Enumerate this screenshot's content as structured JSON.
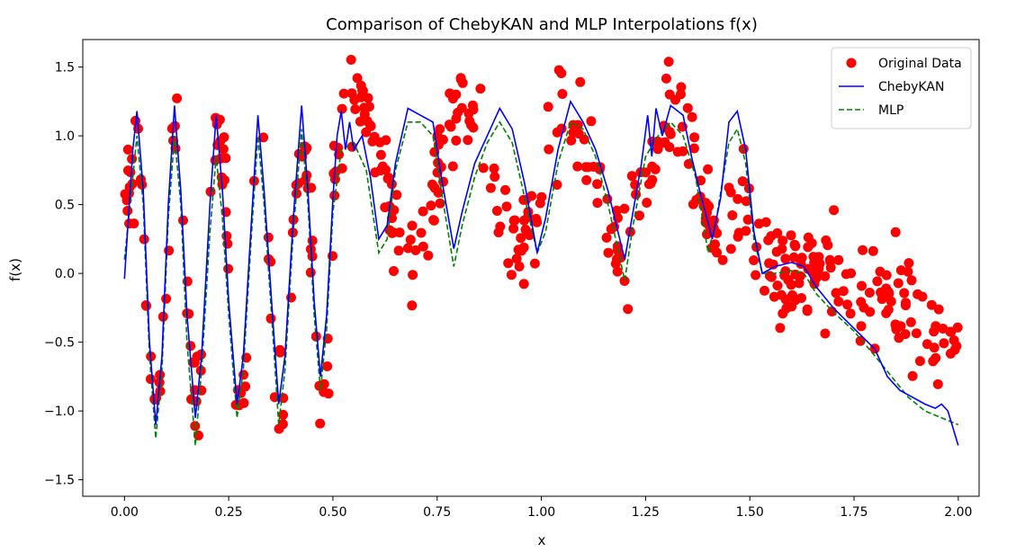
{
  "chart_data": {
    "type": "scatter+line",
    "title": "Comparison of ChebyKAN and MLP Interpolations f(x)",
    "xlabel": "x",
    "ylabel": "f(x)",
    "xlim": [
      -0.1,
      2.05
    ],
    "ylim": [
      -1.62,
      1.7
    ],
    "xticks": [
      0.0,
      0.25,
      0.5,
      0.75,
      1.0,
      1.25,
      1.5,
      1.75,
      2.0
    ],
    "xtick_labels": [
      "0.00",
      "0.25",
      "0.50",
      "0.75",
      "1.00",
      "1.25",
      "1.50",
      "1.75",
      "2.00"
    ],
    "yticks": [
      -1.5,
      -1.0,
      -0.5,
      0.0,
      0.5,
      1.0,
      1.5
    ],
    "ytick_labels": [
      "−1.5",
      "−1.0",
      "−0.5",
      "0.0",
      "0.5",
      "1.0",
      "1.5"
    ],
    "grid": false,
    "legend_position": "top-right",
    "series": [
      {
        "name": "Original Data",
        "kind": "scatter",
        "color": "#ff0000",
        "n_points": 500
      },
      {
        "name": "ChebyKAN",
        "kind": "line",
        "color": "#0000ff",
        "dash": "solid"
      },
      {
        "name": "MLP",
        "kind": "line",
        "color": "#008000",
        "dash": "dashed"
      }
    ],
    "function": "sin(20*pi*x) for x<0.5; sin(8*pi*x)*0.5+0.7 for 0.5<=x<1.5; -0.8*(x-1.5)-0.2*... decreasing for x>=1.5 (with noise)",
    "chebykan_points": [
      [
        0.0,
        -0.04
      ],
      [
        0.02,
        0.9
      ],
      [
        0.03,
        1.18
      ],
      [
        0.045,
        0.6
      ],
      [
        0.06,
        -0.5
      ],
      [
        0.075,
        -1.1
      ],
      [
        0.09,
        -0.6
      ],
      [
        0.105,
        0.5
      ],
      [
        0.12,
        1.22
      ],
      [
        0.135,
        0.6
      ],
      [
        0.15,
        -0.3
      ],
      [
        0.17,
        -1.05
      ],
      [
        0.185,
        -0.6
      ],
      [
        0.205,
        0.5
      ],
      [
        0.22,
        1.15
      ],
      [
        0.235,
        0.6
      ],
      [
        0.25,
        -0.2
      ],
      [
        0.27,
        -0.95
      ],
      [
        0.285,
        -0.6
      ],
      [
        0.305,
        0.4
      ],
      [
        0.32,
        1.15
      ],
      [
        0.335,
        0.6
      ],
      [
        0.355,
        -0.3
      ],
      [
        0.37,
        -0.95
      ],
      [
        0.385,
        -0.6
      ],
      [
        0.405,
        0.4
      ],
      [
        0.425,
        1.22
      ],
      [
        0.44,
        0.6
      ],
      [
        0.455,
        -0.2
      ],
      [
        0.47,
        -0.75
      ],
      [
        0.485,
        -0.3
      ],
      [
        0.5,
        0.55
      ],
      [
        0.51,
        1.0
      ],
      [
        0.52,
        1.18
      ],
      [
        0.53,
        0.9
      ],
      [
        0.54,
        1.1
      ],
      [
        0.55,
        0.9
      ],
      [
        0.57,
        1.0
      ],
      [
        0.59,
        0.7
      ],
      [
        0.61,
        0.25
      ],
      [
        0.63,
        0.35
      ],
      [
        0.65,
        0.8
      ],
      [
        0.68,
        1.2
      ],
      [
        0.71,
        1.15
      ],
      [
        0.74,
        1.1
      ],
      [
        0.76,
        0.7
      ],
      [
        0.79,
        0.18
      ],
      [
        0.81,
        0.45
      ],
      [
        0.84,
        0.8
      ],
      [
        0.87,
        1.0
      ],
      [
        0.9,
        1.2
      ],
      [
        0.93,
        1.05
      ],
      [
        0.96,
        0.65
      ],
      [
        0.99,
        0.15
      ],
      [
        1.01,
        0.4
      ],
      [
        1.04,
        0.9
      ],
      [
        1.07,
        1.25
      ],
      [
        1.1,
        1.1
      ],
      [
        1.13,
        0.9
      ],
      [
        1.16,
        0.6
      ],
      [
        1.2,
        0.1
      ],
      [
        1.22,
        0.45
      ],
      [
        1.24,
        0.8
      ],
      [
        1.255,
        1.15
      ],
      [
        1.265,
        0.85
      ],
      [
        1.275,
        1.2
      ],
      [
        1.29,
        1.0
      ],
      [
        1.31,
        1.22
      ],
      [
        1.34,
        1.15
      ],
      [
        1.36,
        0.85
      ],
      [
        1.38,
        0.6
      ],
      [
        1.41,
        0.25
      ],
      [
        1.43,
        0.55
      ],
      [
        1.45,
        1.1
      ],
      [
        1.47,
        1.18
      ],
      [
        1.49,
        0.9
      ],
      [
        1.51,
        0.3
      ],
      [
        1.53,
        0.0
      ],
      [
        1.56,
        0.05
      ],
      [
        1.6,
        0.08
      ],
      [
        1.63,
        0.05
      ],
      [
        1.66,
        -0.1
      ],
      [
        1.7,
        -0.25
      ],
      [
        1.75,
        -0.4
      ],
      [
        1.8,
        -0.55
      ],
      [
        1.83,
        -0.75
      ],
      [
        1.86,
        -0.85
      ],
      [
        1.89,
        -0.9
      ],
      [
        1.92,
        -0.95
      ],
      [
        1.945,
        -0.98
      ],
      [
        1.96,
        -0.95
      ],
      [
        1.975,
        -1.0
      ],
      [
        2.0,
        -1.25
      ]
    ],
    "mlp_points": [
      [
        0.0,
        0.1
      ],
      [
        0.02,
        0.7
      ],
      [
        0.03,
        1.0
      ],
      [
        0.045,
        0.5
      ],
      [
        0.06,
        -0.6
      ],
      [
        0.075,
        -1.2
      ],
      [
        0.09,
        -0.7
      ],
      [
        0.105,
        0.4
      ],
      [
        0.12,
        1.0
      ],
      [
        0.135,
        0.5
      ],
      [
        0.15,
        -0.5
      ],
      [
        0.17,
        -1.25
      ],
      [
        0.185,
        -0.7
      ],
      [
        0.205,
        0.3
      ],
      [
        0.22,
        0.85
      ],
      [
        0.235,
        0.4
      ],
      [
        0.25,
        -0.3
      ],
      [
        0.27,
        -1.05
      ],
      [
        0.285,
        -0.7
      ],
      [
        0.305,
        0.3
      ],
      [
        0.32,
        1.0
      ],
      [
        0.335,
        0.5
      ],
      [
        0.355,
        -0.4
      ],
      [
        0.37,
        -1.1
      ],
      [
        0.385,
        -0.7
      ],
      [
        0.405,
        0.3
      ],
      [
        0.425,
        1.05
      ],
      [
        0.44,
        0.5
      ],
      [
        0.455,
        -0.3
      ],
      [
        0.47,
        -0.85
      ],
      [
        0.485,
        -0.4
      ],
      [
        0.5,
        0.45
      ],
      [
        0.52,
        0.9
      ],
      [
        0.55,
        0.95
      ],
      [
        0.58,
        0.75
      ],
      [
        0.61,
        0.15
      ],
      [
        0.63,
        0.25
      ],
      [
        0.65,
        0.75
      ],
      [
        0.68,
        1.1
      ],
      [
        0.71,
        1.1
      ],
      [
        0.74,
        1.0
      ],
      [
        0.76,
        0.6
      ],
      [
        0.79,
        0.05
      ],
      [
        0.81,
        0.35
      ],
      [
        0.84,
        0.7
      ],
      [
        0.87,
        0.95
      ],
      [
        0.9,
        1.1
      ],
      [
        0.93,
        0.95
      ],
      [
        0.96,
        0.55
      ],
      [
        0.99,
        0.15
      ],
      [
        1.01,
        0.3
      ],
      [
        1.04,
        0.8
      ],
      [
        1.07,
        1.1
      ],
      [
        1.1,
        1.05
      ],
      [
        1.13,
        0.85
      ],
      [
        1.16,
        0.5
      ],
      [
        1.2,
        -0.05
      ],
      [
        1.22,
        0.35
      ],
      [
        1.25,
        0.85
      ],
      [
        1.28,
        1.0
      ],
      [
        1.31,
        1.1
      ],
      [
        1.34,
        1.0
      ],
      [
        1.37,
        0.7
      ],
      [
        1.4,
        0.15
      ],
      [
        1.42,
        0.4
      ],
      [
        1.45,
        0.95
      ],
      [
        1.47,
        1.05
      ],
      [
        1.49,
        0.8
      ],
      [
        1.51,
        0.25
      ],
      [
        1.53,
        0.0
      ],
      [
        1.56,
        0.0
      ],
      [
        1.6,
        0.02
      ],
      [
        1.63,
        0.0
      ],
      [
        1.66,
        -0.15
      ],
      [
        1.7,
        -0.28
      ],
      [
        1.75,
        -0.42
      ],
      [
        1.8,
        -0.6
      ],
      [
        1.84,
        -0.75
      ],
      [
        1.88,
        -0.9
      ],
      [
        1.92,
        -1.0
      ],
      [
        1.96,
        -1.05
      ],
      [
        2.0,
        -1.1
      ]
    ]
  }
}
